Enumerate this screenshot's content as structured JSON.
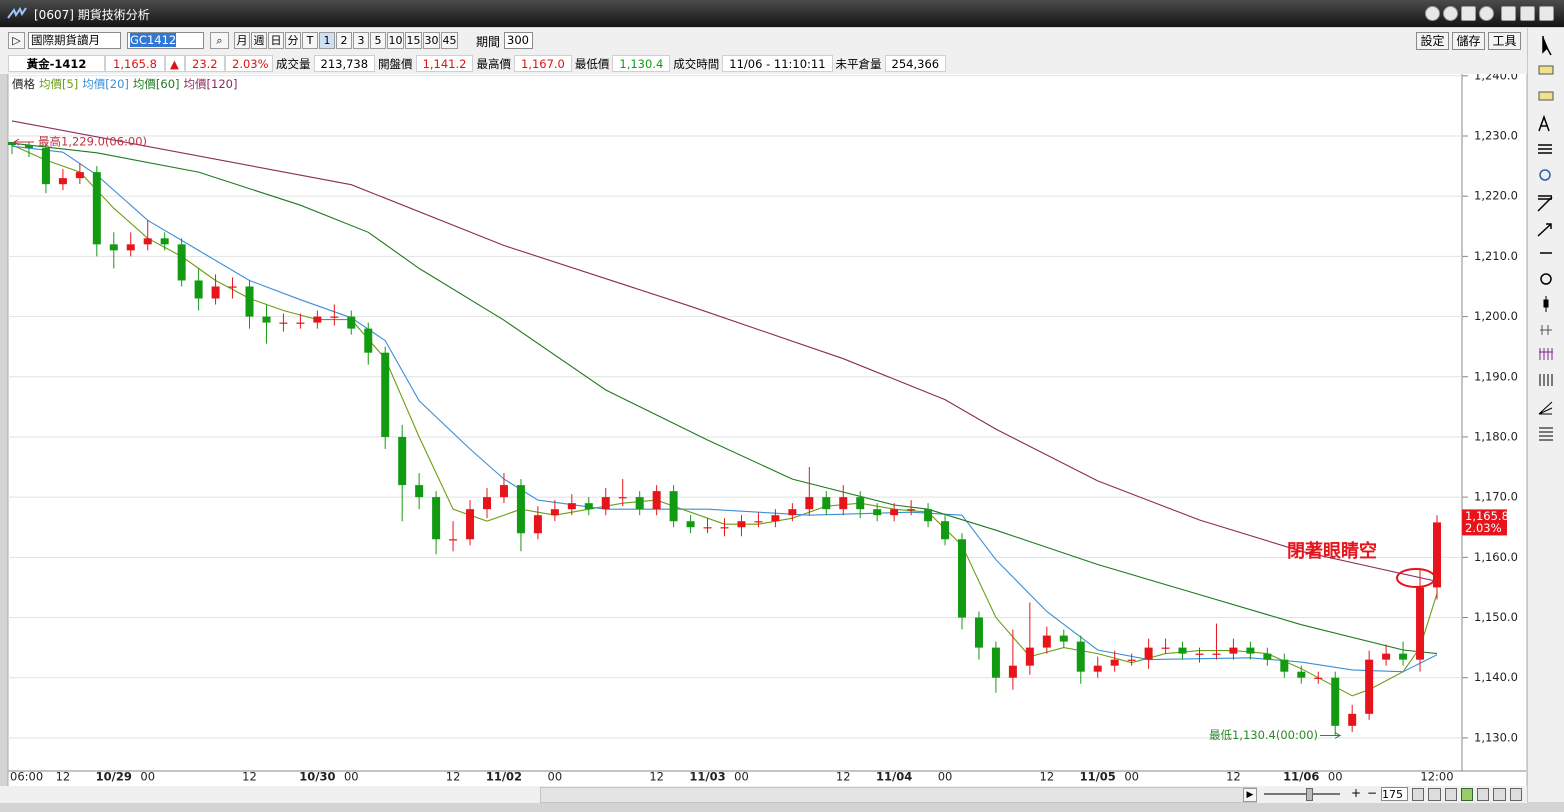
{
  "window": {
    "title": "[0607] 期貨技術分析"
  },
  "toolbar": {
    "market": "國際期貨讀月",
    "symbol": "GC1412",
    "periods": [
      "月",
      "週",
      "日",
      "分",
      "T",
      "1",
      "2",
      "3",
      "5",
      "10",
      "15",
      "30",
      "45"
    ],
    "period_label": "期間",
    "period_value": "300",
    "buttons": [
      "設定",
      "儲存",
      "工具"
    ]
  },
  "quote": {
    "symbol": "黃金-1412",
    "last": "1,165.8",
    "arrow": "▲",
    "change": "23.2",
    "change_pct": "2.03%",
    "fields": [
      {
        "label": "成交量",
        "value": "213,738"
      },
      {
        "label": "開盤價",
        "value": "1,141.2"
      },
      {
        "label": "最高價",
        "value": "1,167.0"
      },
      {
        "label": "最低價",
        "value": "1,130.4"
      },
      {
        "label": "成交時間",
        "value": "11/06 - 11:10:11"
      },
      {
        "label": "未平倉量",
        "value": "254,366"
      }
    ]
  },
  "chart_data": {
    "type": "candlestick",
    "legend_label": "價格",
    "grid": true,
    "up_color": "#e8141c",
    "down_color": "#139a13",
    "categories": [
      "06:00",
      null,
      null,
      "12",
      null,
      null,
      "10/29",
      null,
      "00",
      null,
      null,
      null,
      null,
      null,
      "12",
      null,
      null,
      null,
      "10/30",
      null,
      "00",
      null,
      null,
      null,
      null,
      null,
      "12",
      null,
      null,
      "11/02",
      null,
      null,
      "00",
      null,
      null,
      null,
      null,
      null,
      "12",
      null,
      null,
      "11/03",
      null,
      "00",
      null,
      null,
      null,
      null,
      null,
      "12",
      null,
      null,
      "11/04",
      null,
      null,
      "00",
      null,
      null,
      null,
      null,
      null,
      "12",
      null,
      null,
      "11/05",
      null,
      "00",
      null,
      null,
      null,
      null,
      null,
      "12",
      null,
      null,
      null,
      "11/06",
      null,
      "00",
      null,
      null,
      null,
      null,
      null,
      "12:00"
    ],
    "open": [
      1229,
      1228.5,
      1228,
      1222,
      1223,
      1224,
      1212,
      1211,
      1212,
      1213,
      1212,
      1206,
      1203,
      1205,
      1205,
      1200,
      1199,
      1199,
      1199,
      1200,
      1200,
      1198,
      1194,
      1180,
      1172,
      1170,
      1163,
      1163,
      1168,
      1170,
      1172,
      1164,
      1167,
      1168,
      1169,
      1168,
      1170,
      1170,
      1168,
      1171,
      1166,
      1165,
      1165,
      1165,
      1166,
      1166,
      1167,
      1168,
      1170,
      1168,
      1170,
      1168,
      1167,
      1168,
      1168,
      1166,
      1163,
      1150,
      1145,
      1140,
      1142,
      1145,
      1147,
      1146,
      1141,
      1142,
      1143,
      1143,
      1145,
      1145,
      1144,
      1144,
      1144,
      1145,
      1144,
      1143,
      1141,
      1140,
      1140,
      1132,
      1134,
      1143,
      1144,
      1143,
      1155
    ],
    "high": [
      1229.0,
      1228.9,
      1228.8,
      1224.5,
      1225.5,
      1225,
      1214,
      1214,
      1216,
      1214,
      1213,
      1208,
      1207,
      1206.5,
      1206,
      1202,
      1200.5,
      1200.5,
      1201,
      1202,
      1201,
      1199,
      1195,
      1182,
      1174,
      1171,
      1166,
      1169.5,
      1171.5,
      1174,
      1173,
      1168.5,
      1169.5,
      1170.5,
      1170,
      1171.5,
      1173,
      1171,
      1172,
      1172,
      1167,
      1166.5,
      1166.5,
      1167,
      1167.5,
      1168,
      1169,
      1175,
      1171,
      1172,
      1171,
      1169,
      1169,
      1169.5,
      1169,
      1167,
      1164,
      1151,
      1146,
      1148,
      1152.5,
      1148.5,
      1148,
      1147,
      1143.5,
      1144.5,
      1144,
      1146.5,
      1146.5,
      1146,
      1145,
      1149,
      1146.5,
      1146,
      1145,
      1144,
      1142,
      1141,
      1141,
      1135.5,
      1144.5,
      1145.5,
      1146,
      1158,
      1167.0
    ],
    "low": [
      1227,
      1226.5,
      1220.5,
      1221,
      1222,
      1210,
      1208,
      1210,
      1211,
      1211,
      1205,
      1201,
      1202,
      1203,
      1198,
      1195.5,
      1197.5,
      1198,
      1198,
      1198.5,
      1197,
      1192,
      1178,
      1166,
      1168,
      1160.5,
      1161,
      1162,
      1166.5,
      1169,
      1161,
      1163,
      1166,
      1167,
      1167,
      1167,
      1168.5,
      1167,
      1167,
      1165,
      1164,
      1164,
      1163.5,
      1163.5,
      1165,
      1165,
      1166,
      1167,
      1167,
      1167,
      1166.5,
      1166,
      1166,
      1167,
      1165,
      1162,
      1148,
      1143,
      1137.5,
      1138,
      1140.5,
      1144,
      1145,
      1139,
      1140,
      1141,
      1142,
      1141.5,
      1144,
      1143,
      1142.5,
      1143,
      1143,
      1143,
      1142,
      1140,
      1139,
      1139,
      1130.4,
      1131,
      1133,
      1142,
      1142,
      1141,
      1153
    ],
    "close": [
      1228.5,
      1228,
      1222,
      1223,
      1224,
      1212,
      1211,
      1212,
      1213,
      1212,
      1206,
      1203,
      1205,
      1205,
      1200,
      1199,
      1199,
      1199,
      1200,
      1200,
      1198,
      1194,
      1180,
      1172,
      1170,
      1163,
      1163,
      1168,
      1170,
      1172,
      1164,
      1167,
      1168,
      1169,
      1168,
      1170,
      1170,
      1168,
      1171,
      1166,
      1165,
      1165,
      1165,
      1166,
      1166,
      1167,
      1168,
      1170,
      1168,
      1170,
      1168,
      1167,
      1168,
      1168,
      1166,
      1163,
      1150,
      1145,
      1140,
      1142,
      1145,
      1147,
      1146,
      1141,
      1142,
      1143,
      1143,
      1145,
      1145,
      1144,
      1144,
      1144,
      1145,
      1144,
      1143,
      1141,
      1140,
      1140,
      1132,
      1134,
      1143,
      1144,
      1143,
      1155,
      1165.8
    ],
    "series": [
      {
        "name": "均價[5]",
        "color": "#6b9e14",
        "x": [
          0,
          2,
          4,
          6,
          8,
          10,
          12,
          14,
          16,
          18,
          20,
          22,
          24,
          26,
          28,
          30,
          32,
          34,
          36,
          38,
          40,
          42,
          44,
          46,
          48,
          50,
          52,
          54,
          56,
          58,
          60,
          62,
          64,
          66,
          68,
          70,
          72,
          74,
          76,
          78,
          79,
          80,
          82,
          83,
          84
        ],
        "values": [
          1228.5,
          1226,
          1224,
          1218,
          1213,
          1210,
          1206,
          1203,
          1201,
          1199.5,
          1199.5,
          1193,
          1180,
          1168,
          1166,
          1168,
          1167,
          1168,
          1169,
          1169.5,
          1167.5,
          1165.5,
          1165.5,
          1166.5,
          1168.5,
          1169,
          1168,
          1167.5,
          1162,
          1150,
          1143.5,
          1145,
          1144,
          1142.5,
          1144,
          1144.5,
          1144.5,
          1144,
          1141.5,
          1138.5,
          1137,
          1138,
          1141,
          1145,
          1154
        ]
      },
      {
        "name": "均價[20]",
        "color": "#3b8fd6",
        "x": [
          0,
          3,
          5,
          8,
          11,
          14,
          17,
          20,
          22,
          24,
          27,
          29,
          31,
          35,
          41,
          47,
          53,
          56,
          58,
          61,
          64,
          67,
          73,
          76,
          79,
          82,
          84
        ],
        "values": [
          1228.3,
          1227.3,
          1223.5,
          1216,
          1211,
          1206,
          1202.8,
          1199.8,
          1196,
          1186,
          1178,
          1173,
          1169.5,
          1168,
          1168,
          1167,
          1167.5,
          1167,
          1159.6,
          1151,
          1144.6,
          1143,
          1143.3,
          1142.6,
          1141.3,
          1141,
          1143.8
        ]
      },
      {
        "name": "均價[60]",
        "color": "#1f7a1f",
        "x": [
          0,
          5,
          11,
          17,
          21,
          24,
          29,
          35,
          41,
          46,
          52,
          54,
          58,
          64,
          70,
          76,
          82,
          84
        ],
        "values": [
          1228.8,
          1227.2,
          1224,
          1218.5,
          1214,
          1208,
          1199.4,
          1187.8,
          1179.5,
          1173,
          1168.7,
          1168,
          1164.5,
          1158.8,
          1153.8,
          1148.8,
          1144.6,
          1144
        ]
      },
      {
        "name": "均價[120]",
        "color": "#8b2a5a",
        "x": [
          0,
          20,
          29,
          40,
          49,
          55,
          58,
          64,
          70,
          76,
          80,
          84
        ],
        "values": [
          1232.5,
          1221.9,
          1211.8,
          1201.7,
          1193.0,
          1186.2,
          1181.3,
          1172.7,
          1166.2,
          1161.0,
          1158.5,
          1156
        ]
      }
    ],
    "ylim": [
      1124.5,
      1240.3
    ],
    "yticks": [
      {
        "value": 1130,
        "label": "1,130.0"
      },
      {
        "value": 1140,
        "label": "1,140.0"
      },
      {
        "value": 1150,
        "label": "1,150.0"
      },
      {
        "value": 1160,
        "label": "1,160.0"
      },
      {
        "value": 1170,
        "label": "1,170.0"
      },
      {
        "value": 1180,
        "label": "1,180.0"
      },
      {
        "value": 1190,
        "label": "1,190.0"
      },
      {
        "value": 1200,
        "label": "1,200.0"
      },
      {
        "value": 1210,
        "label": "1,210.0"
      },
      {
        "value": 1220,
        "label": "1,220.0"
      },
      {
        "value": 1230,
        "label": "1,230.0"
      },
      {
        "value": 1240,
        "label": "1,240.0"
      }
    ],
    "annotations": {
      "high": "最高1,229.0(06:00)",
      "low": "最低1,130.4(00:00)",
      "note": "閉著眼睛空"
    },
    "last_price": {
      "value": 1165.8,
      "label": "1,165.8"
    },
    "last_change": "2.03%"
  },
  "footer": {
    "zoom": "175"
  }
}
